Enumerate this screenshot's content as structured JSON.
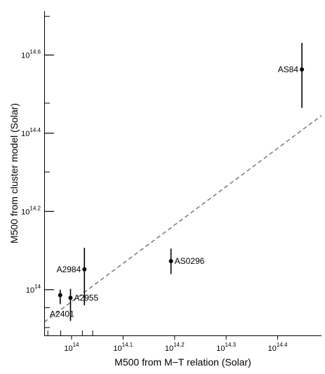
{
  "chart_data": {
    "type": "scatter",
    "title": "",
    "xlabel": "M500 from M−T relation (Solar)",
    "ylabel": "M500 from cluster model (Solar)",
    "x_scale": "log10",
    "y_scale": "log10",
    "xlim": [
      13.947,
      14.485
    ],
    "ylim": [
      13.883,
      14.712
    ],
    "x_ticks": [
      {
        "value": 14.0,
        "base": "10",
        "exp": "14"
      },
      {
        "value": 14.1,
        "base": "10",
        "exp": "14.1"
      },
      {
        "value": 14.2,
        "base": "10",
        "exp": "14.2"
      },
      {
        "value": 14.3,
        "base": "10",
        "exp": "14.3"
      },
      {
        "value": 14.4,
        "base": "10",
        "exp": "14.4"
      }
    ],
    "y_ticks": [
      {
        "value": 14.0,
        "base": "10",
        "exp": "14"
      },
      {
        "value": 14.2,
        "base": "10",
        "exp": "14.2"
      },
      {
        "value": 14.4,
        "base": "10",
        "exp": "14.4"
      },
      {
        "value": 14.6,
        "base": "10",
        "exp": "14.6"
      }
    ],
    "x_minor_ticks": [
      13.954,
      13.979,
      14.021,
      14.041
    ],
    "y_minor_ticks": [
      13.903,
      13.954,
      14.301,
      14.477,
      14.699
    ],
    "points": [
      {
        "name": "A2401",
        "x": 13.978,
        "y": 13.986,
        "y_low": 13.963,
        "y_high": 14.0,
        "label_side": "below-left"
      },
      {
        "name": "A2955",
        "x": 13.998,
        "y": 13.979,
        "y_low": 13.92,
        "y_high": 14.002,
        "label_side": "right"
      },
      {
        "name": "A2984",
        "x": 14.025,
        "y": 14.052,
        "y_low": 13.96,
        "y_high": 14.107,
        "label_side": "left"
      },
      {
        "name": "AS0296",
        "x": 14.193,
        "y": 14.073,
        "y_low": 14.04,
        "y_high": 14.105,
        "label_side": "right"
      },
      {
        "name": "AS84",
        "x": 14.447,
        "y": 14.563,
        "y_low": 14.465,
        "y_high": 14.631,
        "label_side": "left"
      }
    ],
    "fit_line": {
      "style": "dashed",
      "color": "#808080",
      "x": [
        13.947,
        14.485
      ],
      "y": [
        13.917,
        14.445
      ]
    },
    "colors": {
      "points": "#000000",
      "fit": "#808080",
      "axis": "#000000",
      "background": "#ffffff"
    },
    "grid": false,
    "legend": "none"
  }
}
